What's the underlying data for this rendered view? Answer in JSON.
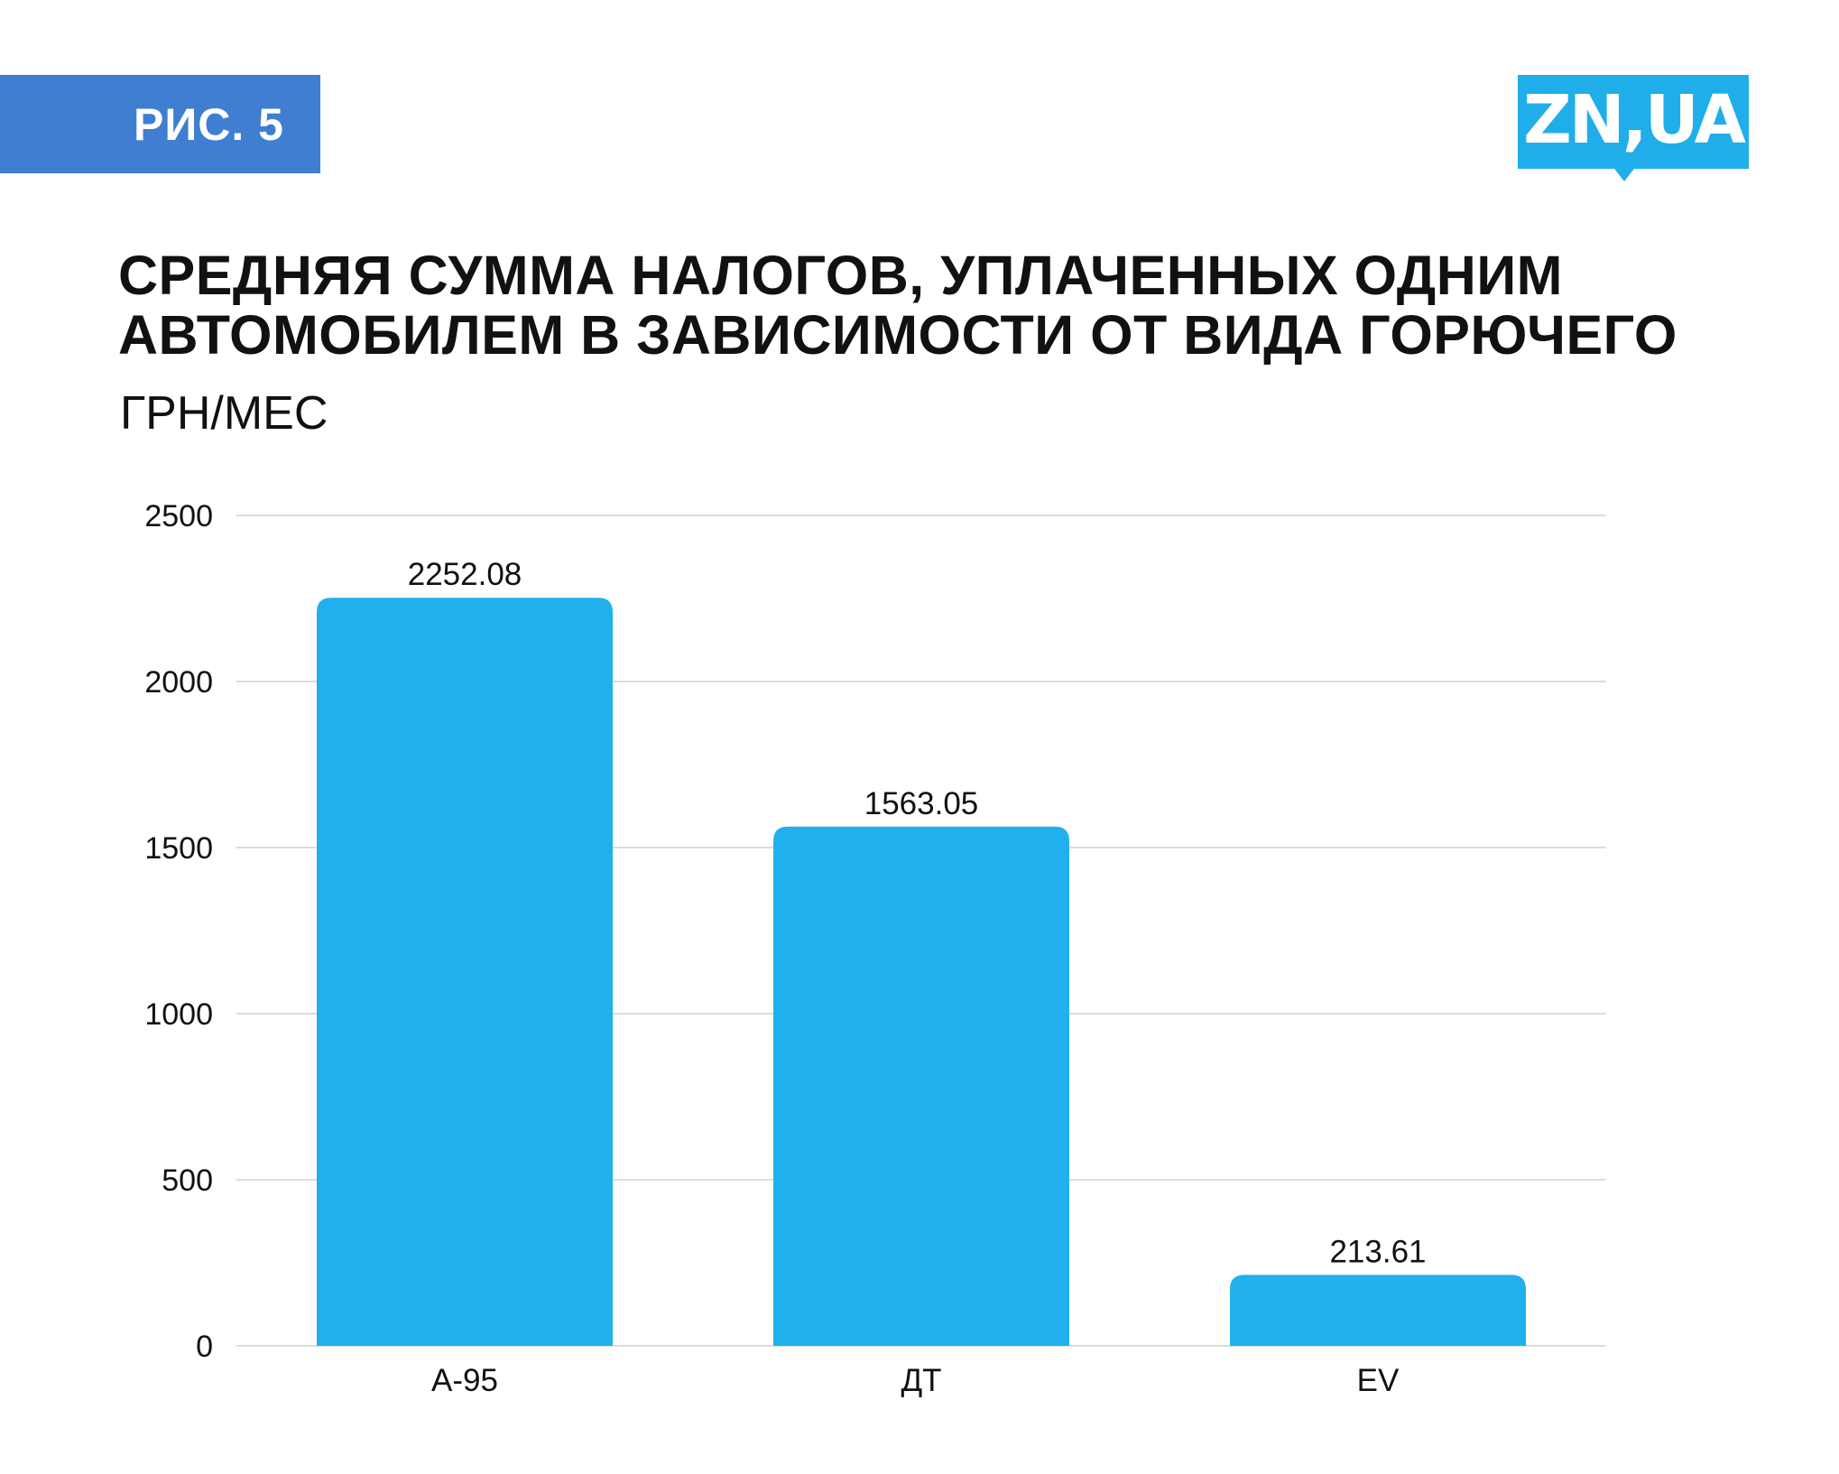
{
  "figure_label": "РИС. 5",
  "logo_text": "ZN,UA",
  "colors": {
    "badge": "#3f7ed1",
    "logo": "#20aeea",
    "bar": "#21b0ee",
    "grid": "#dcdcdc",
    "text": "#111111"
  },
  "chart_data": {
    "type": "bar",
    "title_lines": [
      "СРЕДНЯЯ СУММА НАЛОГОВ, УПЛАЧЕННЫХ ОДНИМ",
      "АВТОМОБИЛЕМ В ЗАВИСИМОСТИ ОТ ВИДА ГОРЮЧЕГО"
    ],
    "units": "ГРН/МЕС",
    "categories": [
      "А-95",
      "ДТ",
      "EV"
    ],
    "values": [
      2252.08,
      1563.05,
      213.61
    ],
    "value_labels": [
      "2252.08",
      "1563.05",
      "213.61"
    ],
    "ylim": [
      0,
      2500
    ],
    "yticks": [
      "0",
      "500",
      "1000",
      "1500",
      "2000",
      "2500"
    ],
    "ytick_values": [
      0,
      500,
      1000,
      1500,
      2000,
      2500
    ],
    "grid": true,
    "legend": "none"
  }
}
